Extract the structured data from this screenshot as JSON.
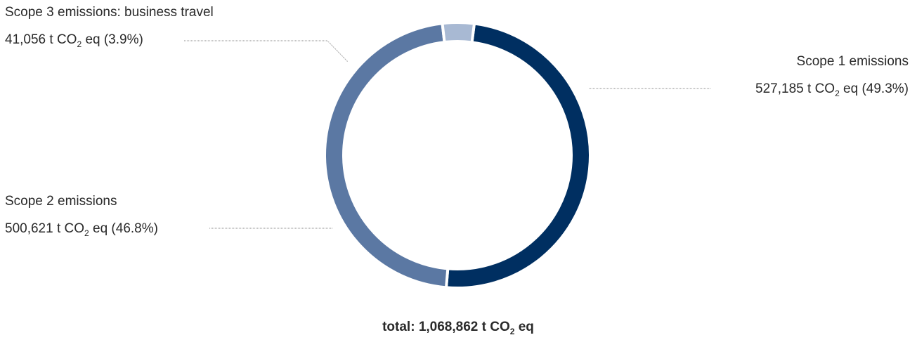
{
  "chart_data": {
    "type": "pie",
    "style": "donut",
    "series": [
      {
        "name": "Scope 1 emissions",
        "value": 527185,
        "value_label": "527,185",
        "percent": 49.3,
        "percent_label": "(49.3%)",
        "color": "#002f61"
      },
      {
        "name": "Scope 2 emissions",
        "value": 500621,
        "value_label": "500,621",
        "percent": 46.8,
        "percent_label": "(46.8%)",
        "color": "#5b78a3"
      },
      {
        "name": "Scope 3 emissions: business travel",
        "value": 41056,
        "value_label": "41,056",
        "percent": 3.9,
        "percent_label": "(3.9%)",
        "color": "#a8b9d3"
      }
    ],
    "unit": {
      "prefix": "t CO",
      "subscript": "2",
      "suffix": "eq"
    },
    "total": {
      "label": "total:",
      "value_label": "1,068,862"
    }
  }
}
